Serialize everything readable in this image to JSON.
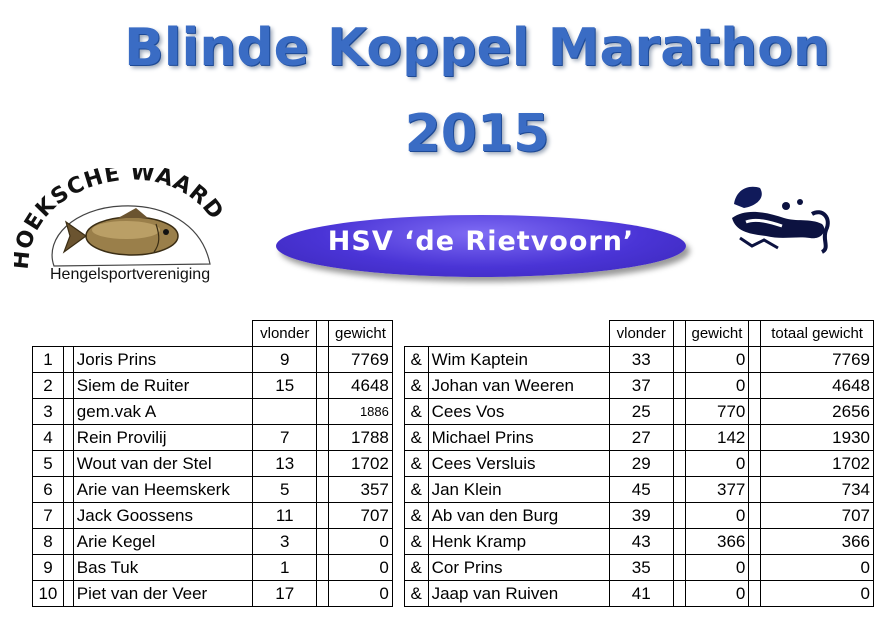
{
  "title_line1": "Blinde Koppel Marathon",
  "title_line2": "2015",
  "logo_left": {
    "text": "HOEKSCHE WAARD",
    "subtitle": "Hengelsportvereniging"
  },
  "club_name": "HSV ‘de Rietvoorn’",
  "colors": {
    "title": "#3a6cc4",
    "oval": "#4a34d6"
  },
  "table": {
    "headers": {
      "vlonder1": "vlonder",
      "gewicht1": "gewicht",
      "vlonder2": "vlonder",
      "gewicht2": "gewicht",
      "totaal": "totaal gewicht"
    },
    "rows": [
      {
        "pos": "1",
        "name1": "Joris Prins",
        "vlonder1": "9",
        "gewicht1": "7769",
        "amp": "&",
        "name2": "Wim Kaptein",
        "vlonder2": "33",
        "gewicht2": "0",
        "totaal": "7769"
      },
      {
        "pos": "2",
        "name1": "Siem de Ruiter",
        "vlonder1": "15",
        "gewicht1": "4648",
        "amp": "&",
        "name2": "Johan van Weeren",
        "vlonder2": "37",
        "gewicht2": "0",
        "totaal": "4648"
      },
      {
        "pos": "3",
        "name1": "gem.vak A",
        "vlonder1": "",
        "gewicht1": "1886",
        "amp": "&",
        "name2": "Cees Vos",
        "vlonder2": "25",
        "gewicht2": "770",
        "totaal": "2656"
      },
      {
        "pos": "4",
        "name1": "Rein Provilij",
        "vlonder1": "7",
        "gewicht1": "1788",
        "amp": "&",
        "name2": "Michael Prins",
        "vlonder2": "27",
        "gewicht2": "142",
        "totaal": "1930"
      },
      {
        "pos": "5",
        "name1": "Wout van der Stel",
        "vlonder1": "13",
        "gewicht1": "1702",
        "amp": "&",
        "name2": "Cees Versluis",
        "vlonder2": "29",
        "gewicht2": "0",
        "totaal": "1702"
      },
      {
        "pos": "6",
        "name1": "Arie van Heemskerk",
        "vlonder1": "5",
        "gewicht1": "357",
        "amp": "&",
        "name2": "Jan Klein",
        "vlonder2": "45",
        "gewicht2": "377",
        "totaal": "734"
      },
      {
        "pos": "7",
        "name1": "Jack Goossens",
        "vlonder1": "11",
        "gewicht1": "707",
        "amp": "&",
        "name2": "Ab van den Burg",
        "vlonder2": "39",
        "gewicht2": "0",
        "totaal": "707"
      },
      {
        "pos": "8",
        "name1": "Arie Kegel",
        "vlonder1": "3",
        "gewicht1": "0",
        "amp": "&",
        "name2": "Henk Kramp",
        "vlonder2": "43",
        "gewicht2": "366",
        "totaal": "366"
      },
      {
        "pos": "9",
        "name1": "Bas Tuk",
        "vlonder1": "1",
        "gewicht1": "0",
        "amp": "&",
        "name2": "Cor Prins",
        "vlonder2": "35",
        "gewicht2": "0",
        "totaal": "0"
      },
      {
        "pos": "10",
        "name1": "Piet van der Veer",
        "vlonder1": "17",
        "gewicht1": "0",
        "amp": "&",
        "name2": "Jaap van Ruiven",
        "vlonder2": "41",
        "gewicht2": "0",
        "totaal": "0"
      }
    ]
  }
}
